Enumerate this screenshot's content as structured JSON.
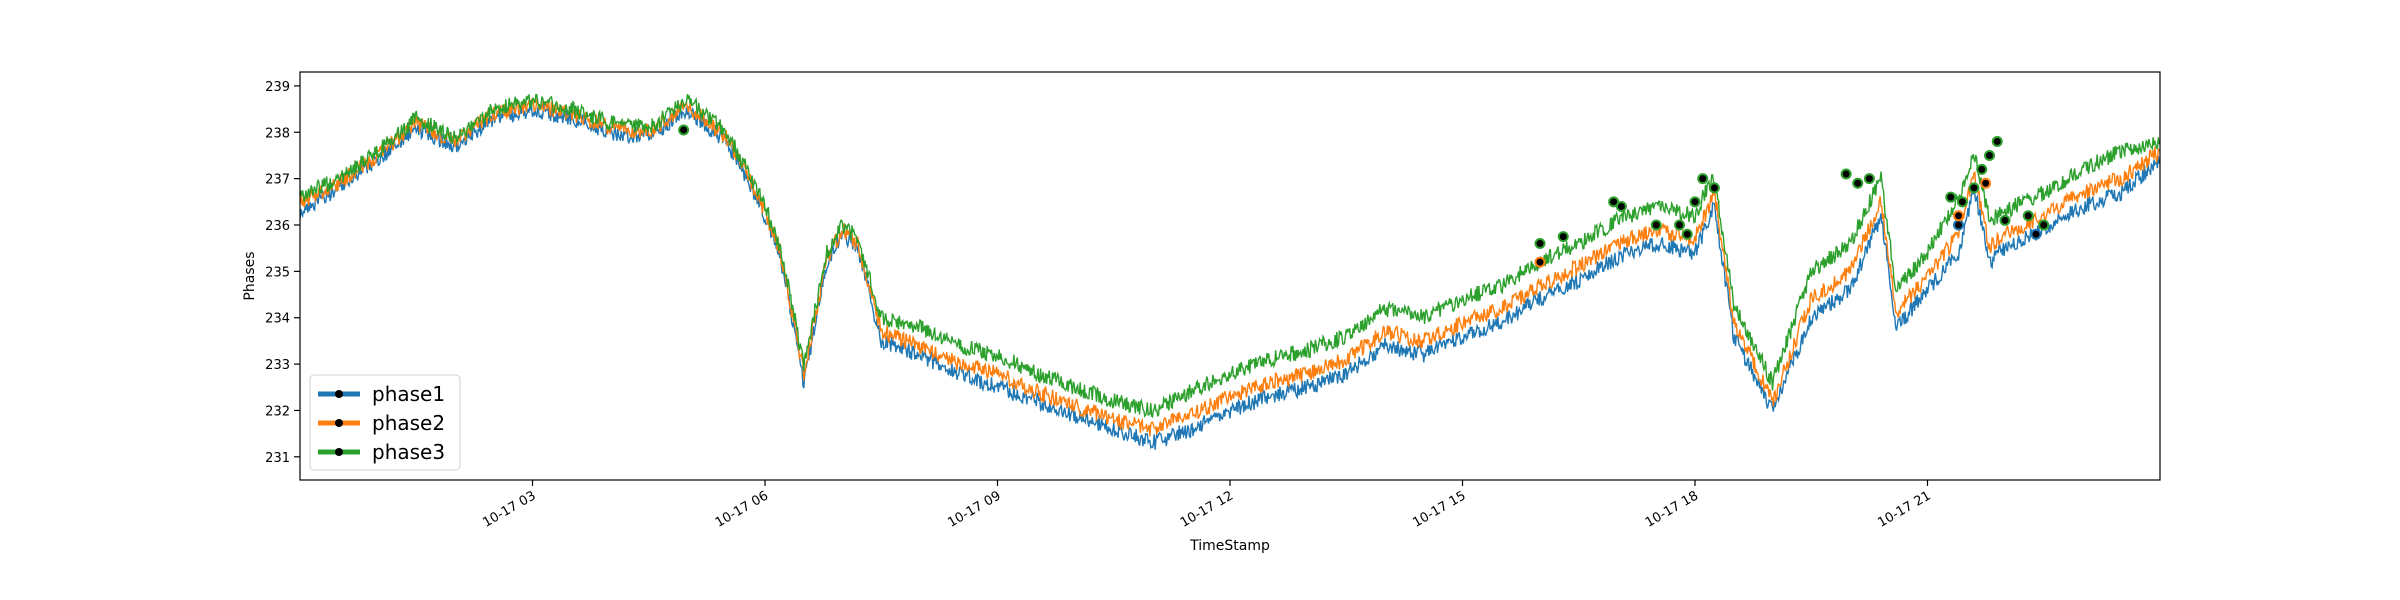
{
  "chart_data": {
    "type": "line",
    "title": "",
    "xlabel": "TimeStamp",
    "ylabel": "Phases",
    "ylim": [
      230.5,
      239.3
    ],
    "xlim_hours": [
      0,
      24
    ],
    "grid": false,
    "legend_position": "lower-left",
    "yticks": [
      231,
      232,
      233,
      234,
      235,
      236,
      237,
      238,
      239
    ],
    "xticks": [
      {
        "hour": 3,
        "label": "10-17 03"
      },
      {
        "hour": 6,
        "label": "10-17 06"
      },
      {
        "hour": 9,
        "label": "10-17 09"
      },
      {
        "hour": 12,
        "label": "10-17 12"
      },
      {
        "hour": 15,
        "label": "10-17 15"
      },
      {
        "hour": 18,
        "label": "10-17 18"
      },
      {
        "hour": 21,
        "label": "10-17 21"
      }
    ],
    "x_hours": [
      0,
      0.5,
      1,
      1.5,
      2,
      2.5,
      3,
      3.5,
      4,
      4.5,
      5,
      5.5,
      5.8,
      6,
      6.2,
      6.5,
      6.8,
      7,
      7.2,
      7.5,
      8,
      8.5,
      9,
      9.5,
      10,
      10.5,
      11,
      11.5,
      12,
      12.5,
      13,
      13.5,
      14,
      14.5,
      15,
      15.5,
      16,
      16.5,
      17,
      17.5,
      18,
      18.1,
      18.25,
      18.5,
      19,
      19.5,
      20,
      20.4,
      20.6,
      21,
      21.4,
      21.6,
      21.8,
      22,
      22.5,
      23,
      23.5,
      24
    ],
    "series": [
      {
        "name": "phase1",
        "color": "#1f77b4",
        "values": [
          236.3,
          236.8,
          237.4,
          238.1,
          237.7,
          238.3,
          238.5,
          238.3,
          238.0,
          237.9,
          238.5,
          237.8,
          236.9,
          236.2,
          235.3,
          232.6,
          235.2,
          235.8,
          235.5,
          233.5,
          233.2,
          232.8,
          232.5,
          232.2,
          231.9,
          231.6,
          231.3,
          231.6,
          232.0,
          232.3,
          232.5,
          232.8,
          233.4,
          233.2,
          233.6,
          233.9,
          234.4,
          234.8,
          235.3,
          235.6,
          235.4,
          235.8,
          236.4,
          233.6,
          232.0,
          234.0,
          234.6,
          236.2,
          233.8,
          234.6,
          235.4,
          236.8,
          235.2,
          235.5,
          235.9,
          236.4,
          236.7,
          237.4
        ]
      },
      {
        "name": "phase2",
        "color": "#ff7f0e",
        "values": [
          236.5,
          236.9,
          237.5,
          238.2,
          237.8,
          238.4,
          238.6,
          238.4,
          238.1,
          238.0,
          238.6,
          237.9,
          237.0,
          236.3,
          235.4,
          232.8,
          235.3,
          235.9,
          235.6,
          233.7,
          233.4,
          233.0,
          232.8,
          232.4,
          232.1,
          231.8,
          231.6,
          231.9,
          232.3,
          232.6,
          232.8,
          233.1,
          233.7,
          233.5,
          233.9,
          234.2,
          234.7,
          235.1,
          235.6,
          235.9,
          235.7,
          236.1,
          236.7,
          233.9,
          232.2,
          234.4,
          235.0,
          236.5,
          234.1,
          234.9,
          235.8,
          237.1,
          235.5,
          235.8,
          236.2,
          236.7,
          237.0,
          237.6
        ]
      },
      {
        "name": "phase3",
        "color": "#2ca02c",
        "values": [
          236.6,
          237.0,
          237.6,
          238.3,
          237.9,
          238.5,
          238.7,
          238.5,
          238.2,
          238.1,
          238.7,
          238.0,
          237.1,
          236.4,
          235.5,
          233.0,
          235.4,
          236.0,
          235.7,
          234.0,
          233.8,
          233.4,
          233.2,
          232.8,
          232.5,
          232.2,
          232.0,
          232.4,
          232.8,
          233.1,
          233.3,
          233.6,
          234.2,
          234.0,
          234.4,
          234.7,
          235.2,
          235.6,
          236.1,
          236.4,
          236.2,
          236.6,
          237.0,
          234.3,
          232.6,
          235.0,
          235.6,
          237.0,
          234.6,
          235.4,
          236.6,
          237.6,
          236.1,
          236.3,
          236.7,
          237.2,
          237.6,
          237.8
        ]
      }
    ],
    "markers_phase3": [
      {
        "hour": 4.95,
        "value": 238.05
      },
      {
        "hour": 16.0,
        "value": 235.6
      },
      {
        "hour": 16.3,
        "value": 235.75
      },
      {
        "hour": 16.95,
        "value": 236.5
      },
      {
        "hour": 17.05,
        "value": 236.4
      },
      {
        "hour": 17.5,
        "value": 236.0
      },
      {
        "hour": 17.8,
        "value": 236.0
      },
      {
        "hour": 17.9,
        "value": 235.8
      },
      {
        "hour": 18.0,
        "value": 236.5
      },
      {
        "hour": 18.1,
        "value": 237.0
      },
      {
        "hour": 18.25,
        "value": 236.8
      },
      {
        "hour": 19.95,
        "value": 237.1
      },
      {
        "hour": 20.1,
        "value": 236.9
      },
      {
        "hour": 20.25,
        "value": 237.0
      },
      {
        "hour": 21.3,
        "value": 236.6
      },
      {
        "hour": 21.45,
        "value": 236.5
      },
      {
        "hour": 21.6,
        "value": 236.8
      },
      {
        "hour": 21.7,
        "value": 237.2
      },
      {
        "hour": 21.8,
        "value": 237.5
      },
      {
        "hour": 21.9,
        "value": 237.8
      },
      {
        "hour": 22.0,
        "value": 236.1
      },
      {
        "hour": 22.3,
        "value": 236.2
      },
      {
        "hour": 22.5,
        "value": 236.0
      }
    ],
    "markers_phase2": [
      {
        "hour": 16.0,
        "value": 235.2
      },
      {
        "hour": 21.4,
        "value": 236.2
      },
      {
        "hour": 21.75,
        "value": 236.9
      }
    ],
    "markers_phase1": [
      {
        "hour": 21.4,
        "value": 236.0
      },
      {
        "hour": 22.4,
        "value": 235.8
      }
    ],
    "marker_style": {
      "fill": "#000000"
    }
  }
}
